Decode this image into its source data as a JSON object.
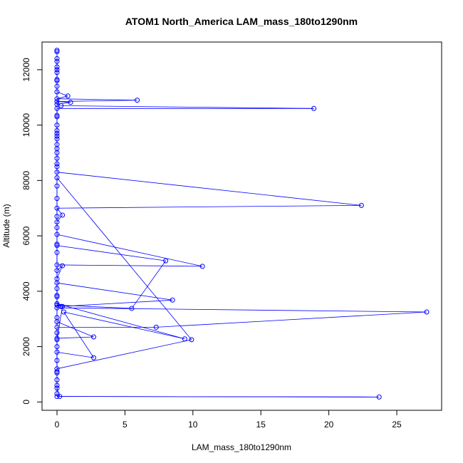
{
  "chart_data": {
    "type": "scatter",
    "title": "ATOM1 North_America LAM_mass_180to1290nm",
    "xlabel": "LAM_mass_180to1290nm",
    "ylabel": "Altitude (m)",
    "xlim": [
      -1.1,
      28.3
    ],
    "ylim": [
      -300,
      13000
    ],
    "xticks": [
      0,
      5,
      10,
      15,
      20,
      25
    ],
    "yticks": [
      0,
      2000,
      4000,
      6000,
      8000,
      10000,
      12000
    ],
    "grid": false,
    "series_color": "#0000ff",
    "markers": "open-circle",
    "connected": true,
    "points": [
      [
        0,
        12700
      ],
      [
        0,
        12650
      ],
      [
        0,
        12300
      ],
      [
        0,
        12100
      ],
      [
        0,
        11900
      ],
      [
        0,
        11650
      ],
      [
        0,
        11400
      ],
      [
        0,
        11200
      ],
      [
        0.8,
        11050
      ],
      [
        0,
        10950
      ],
      [
        5.9,
        10900
      ],
      [
        0,
        10850
      ],
      [
        1.0,
        10820
      ],
      [
        0,
        10750
      ],
      [
        0.3,
        10700
      ],
      [
        18.9,
        10600
      ],
      [
        0,
        10600
      ],
      [
        0,
        10350
      ],
      [
        0,
        10000
      ],
      [
        0,
        9800
      ],
      [
        0,
        9600
      ],
      [
        0,
        9300
      ],
      [
        0,
        9000
      ],
      [
        0,
        8800
      ],
      [
        0,
        8600
      ],
      [
        0,
        8300
      ],
      [
        22.4,
        7100
      ],
      [
        0,
        7000
      ],
      [
        0.4,
        6750
      ],
      [
        0,
        6500
      ],
      [
        0,
        6300
      ],
      [
        0,
        6050
      ],
      [
        10.7,
        4900
      ],
      [
        0,
        4950
      ],
      [
        0,
        5400
      ],
      [
        0,
        5650
      ],
      [
        8.0,
        5100
      ],
      [
        5.5,
        3380
      ],
      [
        0,
        3500
      ],
      [
        0.3,
        3450
      ],
      [
        8.5,
        3680
      ],
      [
        0,
        4300
      ],
      [
        0,
        4450
      ],
      [
        0.4,
        4920
      ],
      [
        0,
        4750
      ],
      [
        0,
        4100
      ],
      [
        0,
        3800
      ],
      [
        0,
        3400
      ],
      [
        27.2,
        3250
      ],
      [
        7.3,
        2700
      ],
      [
        0,
        2700
      ],
      [
        0,
        2500
      ],
      [
        0,
        2250
      ],
      [
        0.4,
        3450
      ],
      [
        0,
        3550
      ],
      [
        9.4,
        2280
      ],
      [
        0.5,
        3250
      ],
      [
        2.7,
        1600
      ],
      [
        0,
        1800
      ],
      [
        0,
        1500
      ],
      [
        0,
        1100
      ],
      [
        0,
        1050
      ],
      [
        0,
        800
      ],
      [
        0,
        600
      ],
      [
        0,
        500
      ],
      [
        0.2,
        200
      ],
      [
        23.7,
        180
      ],
      [
        0,
        200
      ],
      [
        0,
        300
      ],
      [
        0,
        2000
      ],
      [
        0,
        2300
      ],
      [
        2.7,
        2350
      ],
      [
        0,
        2900
      ],
      [
        0,
        3050
      ],
      [
        0,
        5700
      ],
      [
        0,
        8100
      ],
      [
        9.9,
        2250
      ],
      [
        0,
        1200
      ],
      [
        0,
        3850
      ],
      [
        0,
        6700
      ],
      [
        0,
        7350
      ],
      [
        0,
        7800
      ],
      [
        0,
        8500
      ],
      [
        0,
        9150
      ],
      [
        0,
        9500
      ],
      [
        0,
        9700
      ],
      [
        0,
        10300
      ],
      [
        0,
        11600
      ],
      [
        0,
        12000
      ],
      [
        0,
        12400
      ]
    ]
  }
}
